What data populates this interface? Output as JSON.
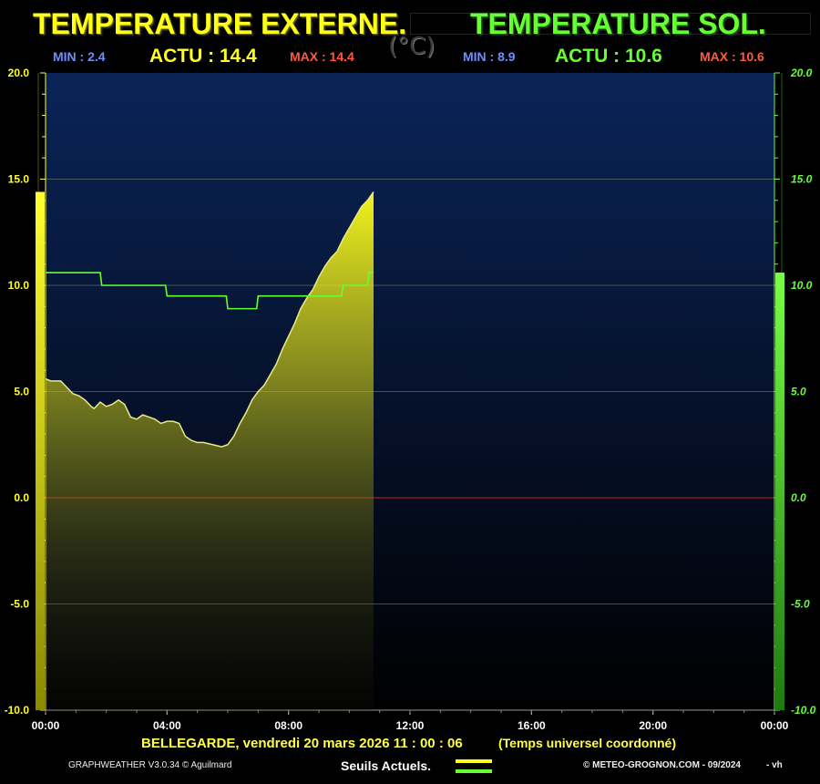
{
  "header": {
    "title_ext": "TEMPERATURE EXTERNE.",
    "title_sol": "TEMPERATURE SOL.",
    "unit": "(°C)",
    "ext": {
      "min": "MIN : 2.4",
      "actu": "ACTU : 14.4",
      "max": "MAX : 14.4"
    },
    "sol": {
      "min": "MIN : 8.9",
      "actu": "ACTU : 10.6",
      "max": "MAX : 10.6"
    }
  },
  "footer": {
    "location_date": "BELLEGARDE,  vendredi 20 mars 2026   11 : 00 : 06",
    "timezone": "(Temps universel coordonné)",
    "version": "GRAPHWEATHER V3.0.34 © Aguilmard",
    "seuils": "Seuils Actuels.",
    "copyright": "© METEO-GROGNON.COM - 09/2024",
    "suffix": "- vh"
  },
  "colors": {
    "ext": "#ffff1a",
    "sol": "#66ff33",
    "zero_line": "#c81e1e",
    "min": "#6f8cff",
    "max": "#ff5a3c"
  },
  "chart_data": {
    "type": "area",
    "ylim": [
      -10,
      20
    ],
    "xlim_hours": [
      0,
      24
    ],
    "y_ticks_left": [
      "20.0",
      "15.0",
      "10.0",
      "5.0",
      "0.0",
      "-5.0",
      "-10.0"
    ],
    "y_ticks_right": [
      "20.0",
      "15.0",
      "10.0",
      "5.0",
      "0.0",
      "-5.0",
      "-10.0"
    ],
    "x_ticks": [
      "00:00",
      "04:00",
      "08:00",
      "12:00",
      "16:00",
      "20:00",
      "00:00"
    ],
    "grid": true,
    "series": [
      {
        "name": "TEMPERATURE EXTERNE.",
        "style": "area",
        "x": [
          0,
          0.17,
          0.5,
          0.7,
          0.9,
          1.1,
          1.3,
          1.5,
          1.6,
          1.8,
          2.0,
          2.2,
          2.4,
          2.6,
          2.8,
          3.0,
          3.2,
          3.4,
          3.6,
          3.8,
          4.0,
          4.2,
          4.4,
          4.6,
          4.8,
          5.0,
          5.2,
          5.5,
          5.8,
          6.0,
          6.2,
          6.4,
          6.6,
          6.8,
          7.0,
          7.2,
          7.4,
          7.6,
          7.8,
          8.0,
          8.2,
          8.4,
          8.6,
          8.8,
          9.0,
          9.2,
          9.4,
          9.6,
          9.8,
          10.0,
          10.2,
          10.4,
          10.6,
          10.8
        ],
        "y": [
          5.6,
          5.5,
          5.5,
          5.2,
          4.9,
          4.8,
          4.6,
          4.3,
          4.2,
          4.5,
          4.3,
          4.4,
          4.6,
          4.4,
          3.8,
          3.7,
          3.9,
          3.8,
          3.7,
          3.5,
          3.6,
          3.6,
          3.5,
          2.9,
          2.7,
          2.6,
          2.6,
          2.5,
          2.4,
          2.5,
          2.9,
          3.5,
          4.0,
          4.6,
          5.0,
          5.3,
          5.8,
          6.3,
          7.0,
          7.6,
          8.2,
          8.9,
          9.4,
          9.8,
          10.4,
          10.9,
          11.3,
          11.6,
          12.2,
          12.7,
          13.2,
          13.7,
          14.0,
          14.4
        ],
        "fill": "#ffff1a"
      },
      {
        "name": "TEMPERATURE SOL.",
        "style": "line",
        "x": [
          0,
          1.8,
          1.85,
          3.95,
          4.0,
          5.95,
          6.0,
          6.95,
          7.0,
          9.75,
          9.8,
          10.6,
          10.65,
          10.8
        ],
        "y": [
          10.6,
          10.6,
          10.0,
          10.0,
          9.5,
          9.5,
          8.9,
          8.9,
          9.5,
          9.5,
          10.0,
          10.0,
          10.6,
          10.6
        ],
        "stroke": "#66ff33"
      }
    ],
    "thresholds": {
      "ext": 14.4,
      "sol": 10.6
    },
    "zero_line": 0.0
  }
}
